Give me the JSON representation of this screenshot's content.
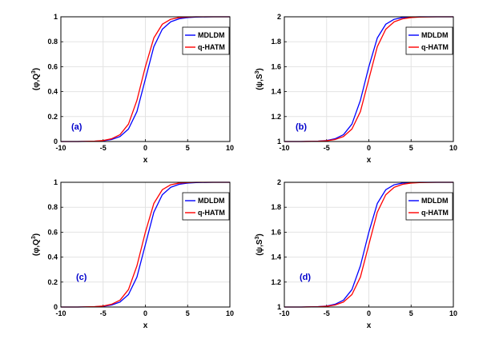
{
  "colors": {
    "mdldm": "#0000ff",
    "qhatm": "#ff0000",
    "panel_label": "#0000cc",
    "grid": "#e3e3e3"
  },
  "chart_data": [
    {
      "type": "line",
      "panel_label": "(a)",
      "xlabel": "x",
      "ylabel_base": "(φ,Q",
      "ylabel_sup": "3",
      "ylabel_close": ")",
      "xlim": [
        -10,
        10
      ],
      "ylim": [
        0,
        1
      ],
      "xticks": [
        "-10",
        "-5",
        "0",
        "5",
        "10"
      ],
      "yticks": [
        "0",
        "0.2",
        "0.4",
        "0.6",
        "0.8",
        "1"
      ],
      "grid": true,
      "legend": "top-right",
      "x": [
        -10,
        -8,
        -6,
        -5,
        -4,
        -3,
        -2,
        -1,
        0,
        1,
        2,
        3,
        4,
        5,
        6,
        8,
        10
      ],
      "series": [
        {
          "name": "MDLDM",
          "color": "#0000ff",
          "values": [
            0.0,
            0.0,
            0.002,
            0.006,
            0.016,
            0.04,
            0.1,
            0.24,
            0.5,
            0.76,
            0.9,
            0.96,
            0.984,
            0.994,
            0.998,
            1.0,
            1.0
          ]
        },
        {
          "name": "q-HATM",
          "color": "#ff0000",
          "values": [
            0.0,
            0.0,
            0.003,
            0.008,
            0.022,
            0.055,
            0.14,
            0.33,
            0.6,
            0.83,
            0.94,
            0.98,
            0.994,
            0.998,
            1.0,
            1.0,
            1.0
          ]
        }
      ]
    },
    {
      "type": "line",
      "panel_label": "(b)",
      "xlabel": "x",
      "ylabel_base": "(ψ,S",
      "ylabel_sup": "3",
      "ylabel_close": ")",
      "xlim": [
        -10,
        10
      ],
      "ylim": [
        1,
        2
      ],
      "xticks": [
        "-10",
        "-5",
        "0",
        "5",
        "10"
      ],
      "yticks": [
        "1",
        "1.2",
        "1.4",
        "1.6",
        "1.8",
        "2"
      ],
      "grid": true,
      "legend": "top-right",
      "x": [
        -10,
        -8,
        -6,
        -5,
        -4,
        -3,
        -2,
        -1,
        0,
        1,
        2,
        3,
        4,
        5,
        6,
        8,
        10
      ],
      "series": [
        {
          "name": "MDLDM",
          "color": "#0000ff",
          "values": [
            1.0,
            1.0,
            1.003,
            1.008,
            1.022,
            1.055,
            1.14,
            1.33,
            1.6,
            1.83,
            1.94,
            1.98,
            1.994,
            1.998,
            2.0,
            2.0,
            2.0
          ]
        },
        {
          "name": "q-HATM",
          "color": "#ff0000",
          "values": [
            1.0,
            1.0,
            1.002,
            1.006,
            1.016,
            1.04,
            1.1,
            1.24,
            1.5,
            1.76,
            1.9,
            1.96,
            1.984,
            1.994,
            1.998,
            2.0,
            2.0
          ]
        }
      ]
    },
    {
      "type": "line",
      "panel_label": "(c)",
      "xlabel": "x",
      "ylabel_base": "(φ,Q",
      "ylabel_sup": "3",
      "ylabel_close": ")",
      "xlim": [
        -10,
        10
      ],
      "ylim": [
        0,
        1
      ],
      "xticks": [
        "-10",
        "-5",
        "0",
        "5",
        "10"
      ],
      "yticks": [
        "0",
        "0.2",
        "0.4",
        "0.6",
        "0.8",
        "1"
      ],
      "grid": true,
      "legend": "top-right",
      "x": [
        -10,
        -8,
        -6,
        -5,
        -4,
        -3,
        -2,
        -1,
        0,
        1,
        2,
        3,
        4,
        5,
        6,
        8,
        10
      ],
      "series": [
        {
          "name": "MDLDM",
          "color": "#0000ff",
          "values": [
            0.0,
            0.0,
            0.002,
            0.006,
            0.016,
            0.04,
            0.1,
            0.24,
            0.5,
            0.76,
            0.9,
            0.96,
            0.984,
            0.994,
            0.998,
            1.0,
            1.0
          ]
        },
        {
          "name": "q-HATM",
          "color": "#ff0000",
          "values": [
            0.0,
            0.0,
            0.003,
            0.008,
            0.022,
            0.055,
            0.14,
            0.33,
            0.6,
            0.83,
            0.94,
            0.98,
            0.994,
            0.998,
            1.0,
            1.0,
            1.0
          ]
        }
      ]
    },
    {
      "type": "line",
      "panel_label": "(d)",
      "xlabel": "x",
      "ylabel_base": "(ψ,S",
      "ylabel_sup": "3",
      "ylabel_close": ")",
      "xlim": [
        -10,
        10
      ],
      "ylim": [
        1,
        2
      ],
      "xticks": [
        "-10",
        "-5",
        "0",
        "5",
        "10"
      ],
      "yticks": [
        "1",
        "1.2",
        "1.4",
        "1.6",
        "1.8",
        "2"
      ],
      "grid": true,
      "legend": "top-right",
      "x": [
        -10,
        -8,
        -6,
        -5,
        -4,
        -3,
        -2,
        -1,
        0,
        1,
        2,
        3,
        4,
        5,
        6,
        8,
        10
      ],
      "series": [
        {
          "name": "MDLDM",
          "color": "#0000ff",
          "values": [
            1.0,
            1.0,
            1.003,
            1.008,
            1.022,
            1.055,
            1.14,
            1.33,
            1.6,
            1.83,
            1.94,
            1.98,
            1.994,
            1.998,
            2.0,
            2.0,
            2.0
          ]
        },
        {
          "name": "q-HATM",
          "color": "#ff0000",
          "values": [
            1.0,
            1.0,
            1.002,
            1.006,
            1.016,
            1.04,
            1.1,
            1.24,
            1.5,
            1.76,
            1.9,
            1.96,
            1.984,
            1.994,
            1.998,
            2.0,
            2.0
          ]
        }
      ]
    }
  ]
}
